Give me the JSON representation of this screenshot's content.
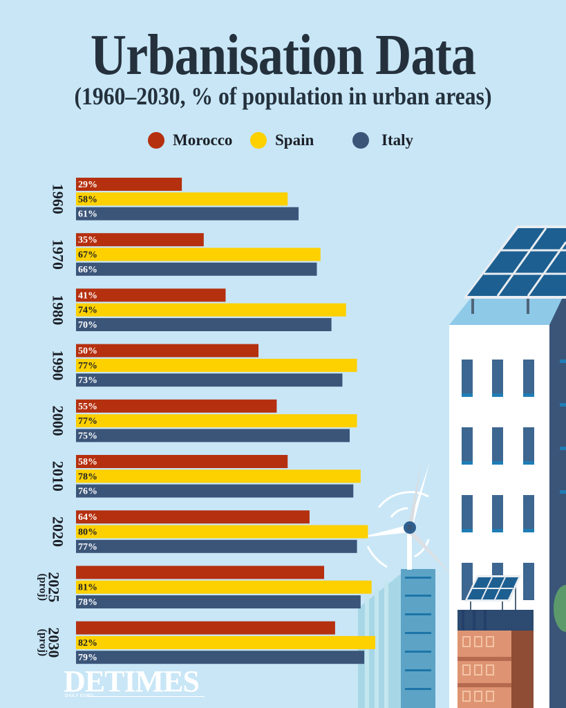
{
  "header": {
    "title": "Urbanisation Data",
    "subtitle": "(1960–2030, % of population in urban areas)"
  },
  "legend": [
    {
      "label": "Morocco",
      "color": "#b5300f"
    },
    {
      "label": "Spain",
      "color": "#fdd000"
    },
    {
      "label": "Italy",
      "color": "#3b5579"
    }
  ],
  "chart_data": {
    "type": "bar",
    "orientation": "horizontal",
    "title": "Urbanisation Data",
    "subtitle": "(1960–2030, % of population in urban areas)",
    "xlabel": "",
    "ylabel": "",
    "xlim": [
      0,
      100
    ],
    "grid": false,
    "legend_position": "top-center",
    "categories": [
      "1960",
      "1970",
      "1980",
      "1990",
      "2000",
      "2010",
      "2020",
      "2025",
      "2030"
    ],
    "category_notes": [
      "",
      "",
      "",
      "",
      "",
      "",
      "",
      "(proj)",
      "(proj)"
    ],
    "series": [
      {
        "name": "Morocco",
        "color": "#b5300f",
        "label_color": "#ffffff",
        "values": [
          29,
          35,
          41,
          50,
          55,
          58,
          64,
          68,
          71
        ],
        "labels": [
          "29%",
          "35%",
          "41%",
          "50%",
          "55%",
          "58%",
          "64%",
          "",
          ""
        ]
      },
      {
        "name": "Spain",
        "color": "#fdd000",
        "label_color": "#1b1f27",
        "values": [
          58,
          67,
          74,
          77,
          77,
          78,
          80,
          81,
          82
        ],
        "labels": [
          "58%",
          "67%",
          "74%",
          "77%",
          "77%",
          "78%",
          "80%",
          "81%",
          "82%"
        ]
      },
      {
        "name": "Italy",
        "color": "#3b5579",
        "label_color": "#ffffff",
        "values": [
          61,
          66,
          70,
          73,
          75,
          76,
          77,
          78,
          79
        ],
        "labels": [
          "61%",
          "66%",
          "70%",
          "73%",
          "75%",
          "76%",
          "77%",
          "78%",
          "79%"
        ]
      }
    ]
  },
  "branding": {
    "logo_text": "DETIMES",
    "logo_subtext": "DAILY EURO"
  },
  "colors": {
    "background": "#c8e6f6",
    "title": "#24313d"
  }
}
